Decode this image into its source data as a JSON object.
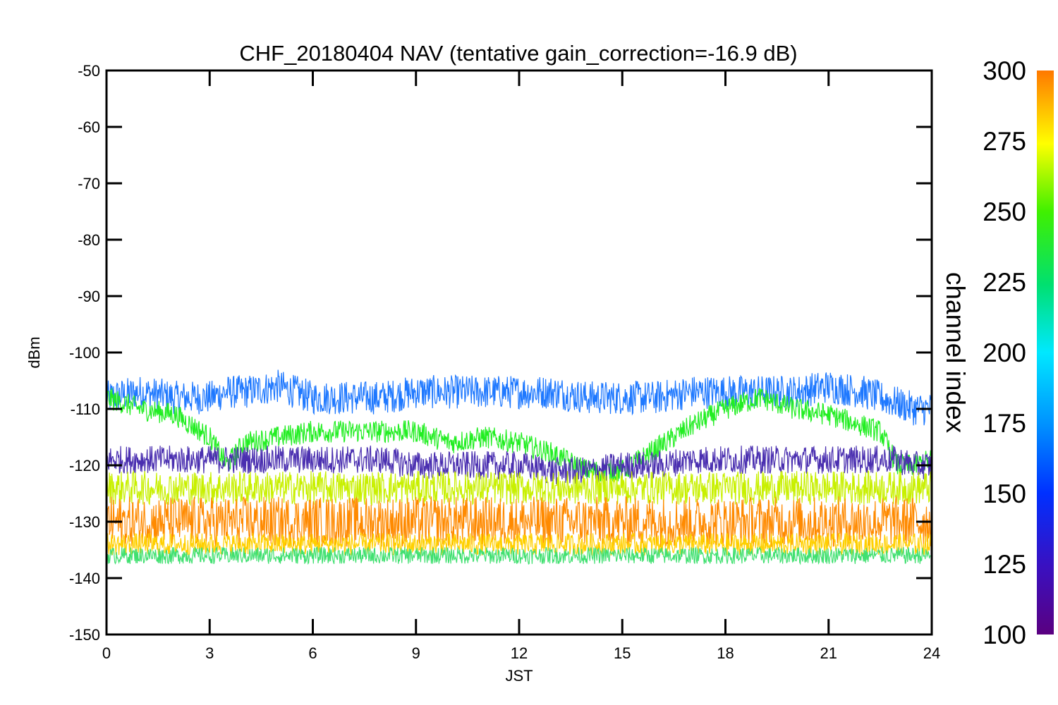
{
  "chart_data": {
    "type": "line",
    "title": "CHF_20180404 NAV (tentative gain_correction=-16.9 dB)",
    "xlabel": "JST",
    "ylabel": "dBm",
    "xlim": [
      0,
      24
    ],
    "ylim": [
      -150,
      -50
    ],
    "x_ticks": [
      "0",
      "3",
      "6",
      "9",
      "12",
      "15",
      "18",
      "21",
      "24"
    ],
    "y_ticks": [
      "-50",
      "-60",
      "-70",
      "-80",
      "-90",
      "-100",
      "-110",
      "-120",
      "-130",
      "-140",
      "-150"
    ],
    "colorbar": {
      "label": "channel index",
      "range": [
        100,
        300
      ],
      "ticks": [
        "300",
        "275",
        "250",
        "225",
        "200",
        "175",
        "150",
        "125",
        "100"
      ],
      "colormap": "rainbow (purple-blue-cyan-green-yellow-orange)"
    },
    "x": [
      0,
      1,
      2,
      3,
      3.5,
      4,
      5,
      6,
      7,
      8,
      9,
      10,
      11,
      12,
      13,
      14,
      15,
      16,
      17,
      18,
      19,
      20,
      21,
      22,
      22.5,
      23,
      23.5,
      24
    ],
    "series": [
      {
        "color": "#1e78ff",
        "channel": 160,
        "values": [
          -108,
          -107,
          -108,
          -108,
          -107,
          -107,
          -106,
          -108,
          -108,
          -108,
          -107,
          -107,
          -107,
          -107,
          -107,
          -108,
          -108,
          -108,
          -107,
          -107,
          -107,
          -107,
          -106,
          -107,
          -108,
          -109,
          -110,
          -110
        ],
        "spread": 3
      },
      {
        "color": "#22ee22",
        "channel": 225,
        "values": [
          -108,
          -110,
          -111,
          -115,
          -120,
          -116,
          -115,
          -114,
          -114,
          -114,
          -114,
          -116,
          -115,
          -116,
          -118,
          -121,
          -121,
          -117,
          -113,
          -110,
          -108,
          -110,
          -111,
          -113,
          -114,
          -120,
          -120,
          -119
        ],
        "spread": 2
      },
      {
        "color": "#4a2fb0",
        "channel": 115,
        "values": [
          -119,
          -119,
          -119,
          -119,
          -119,
          -119,
          -119,
          -119,
          -119,
          -119,
          -120,
          -120,
          -120,
          -120,
          -121,
          -121,
          -120,
          -120,
          -119,
          -119,
          -119,
          -119,
          -119,
          -119,
          -119,
          -119,
          -120,
          -120
        ],
        "spread": 2.5
      },
      {
        "color": "#c8f000",
        "channel": 265,
        "values": [
          -124,
          -124,
          -124,
          -124,
          -124,
          -124,
          -124,
          -124,
          -124,
          -124,
          -124,
          -124,
          -124,
          -124,
          -124,
          -124,
          -124,
          -124,
          -124,
          -124,
          -124,
          -124,
          -124,
          -124,
          -124,
          -124,
          -124,
          -124
        ],
        "spread": 3
      },
      {
        "color": "#ff8a00",
        "channel": 295,
        "values": [
          -130,
          -130,
          -130,
          -130,
          -130,
          -130,
          -130,
          -130,
          -130,
          -130,
          -130,
          -130,
          -130,
          -130,
          -130,
          -130,
          -130,
          -130,
          -130,
          -130,
          -130,
          -130,
          -130,
          -130,
          -130,
          -130,
          -130,
          -130
        ],
        "spread": 4.5
      },
      {
        "color": "#ffd000",
        "channel": 280,
        "values": [
          -134,
          -134,
          -134,
          -134,
          -134,
          -134,
          -134,
          -134,
          -134,
          -134,
          -134,
          -134,
          -134,
          -134,
          -134,
          -134,
          -134,
          -134,
          -134,
          -134,
          -134,
          -134,
          -134,
          -134,
          -134,
          -134,
          -134,
          -134
        ],
        "spread": 2
      },
      {
        "color": "#40e070",
        "channel": 215,
        "values": [
          -136,
          -136,
          -136,
          -136,
          -136,
          -136,
          -136,
          -136,
          -136,
          -136,
          -136,
          -136,
          -136,
          -136,
          -136,
          -136,
          -136,
          -136,
          -136,
          -136,
          -136,
          -136,
          -136,
          -136,
          -136,
          -136,
          -136,
          -136
        ],
        "spread": 1.5
      }
    ],
    "grid": false,
    "legend": "colorbar-right"
  }
}
